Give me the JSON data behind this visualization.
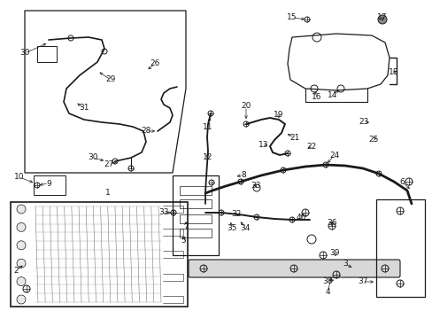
{
  "bg_color": "#ffffff",
  "line_color": "#1a1a1a",
  "fig_width": 4.89,
  "fig_height": 3.6,
  "dpi": 100,
  "numbers": [
    [
      "1",
      122,
      218
    ],
    [
      "2",
      18,
      305
    ],
    [
      "3",
      390,
      298
    ],
    [
      "4",
      370,
      330
    ],
    [
      "5",
      207,
      272
    ],
    [
      "6",
      454,
      205
    ],
    [
      "7",
      210,
      255
    ],
    [
      "8",
      275,
      197
    ],
    [
      "9",
      55,
      207
    ],
    [
      "10",
      22,
      200
    ],
    [
      "11",
      235,
      143
    ],
    [
      "12",
      235,
      178
    ],
    [
      "13",
      298,
      163
    ],
    [
      "14",
      376,
      107
    ],
    [
      "15",
      330,
      20
    ],
    [
      "16",
      358,
      110
    ],
    [
      "17",
      432,
      20
    ],
    [
      "18",
      445,
      82
    ],
    [
      "19",
      315,
      130
    ],
    [
      "20",
      278,
      120
    ],
    [
      "21",
      333,
      155
    ],
    [
      "22",
      352,
      165
    ],
    [
      "23",
      411,
      138
    ],
    [
      "24",
      378,
      175
    ],
    [
      "25",
      422,
      157
    ],
    [
      "26",
      175,
      72
    ],
    [
      "27",
      123,
      185
    ],
    [
      "28",
      165,
      148
    ],
    [
      "29",
      125,
      90
    ],
    [
      "30",
      28,
      60
    ],
    [
      "30",
      105,
      178
    ],
    [
      "31",
      95,
      122
    ],
    [
      "32",
      267,
      242
    ],
    [
      "33",
      185,
      240
    ],
    [
      "33",
      289,
      210
    ],
    [
      "34",
      277,
      257
    ],
    [
      "35",
      262,
      257
    ],
    [
      "36",
      375,
      252
    ],
    [
      "37",
      410,
      318
    ],
    [
      "38",
      370,
      318
    ],
    [
      "39",
      378,
      285
    ],
    [
      "40",
      340,
      245
    ]
  ]
}
